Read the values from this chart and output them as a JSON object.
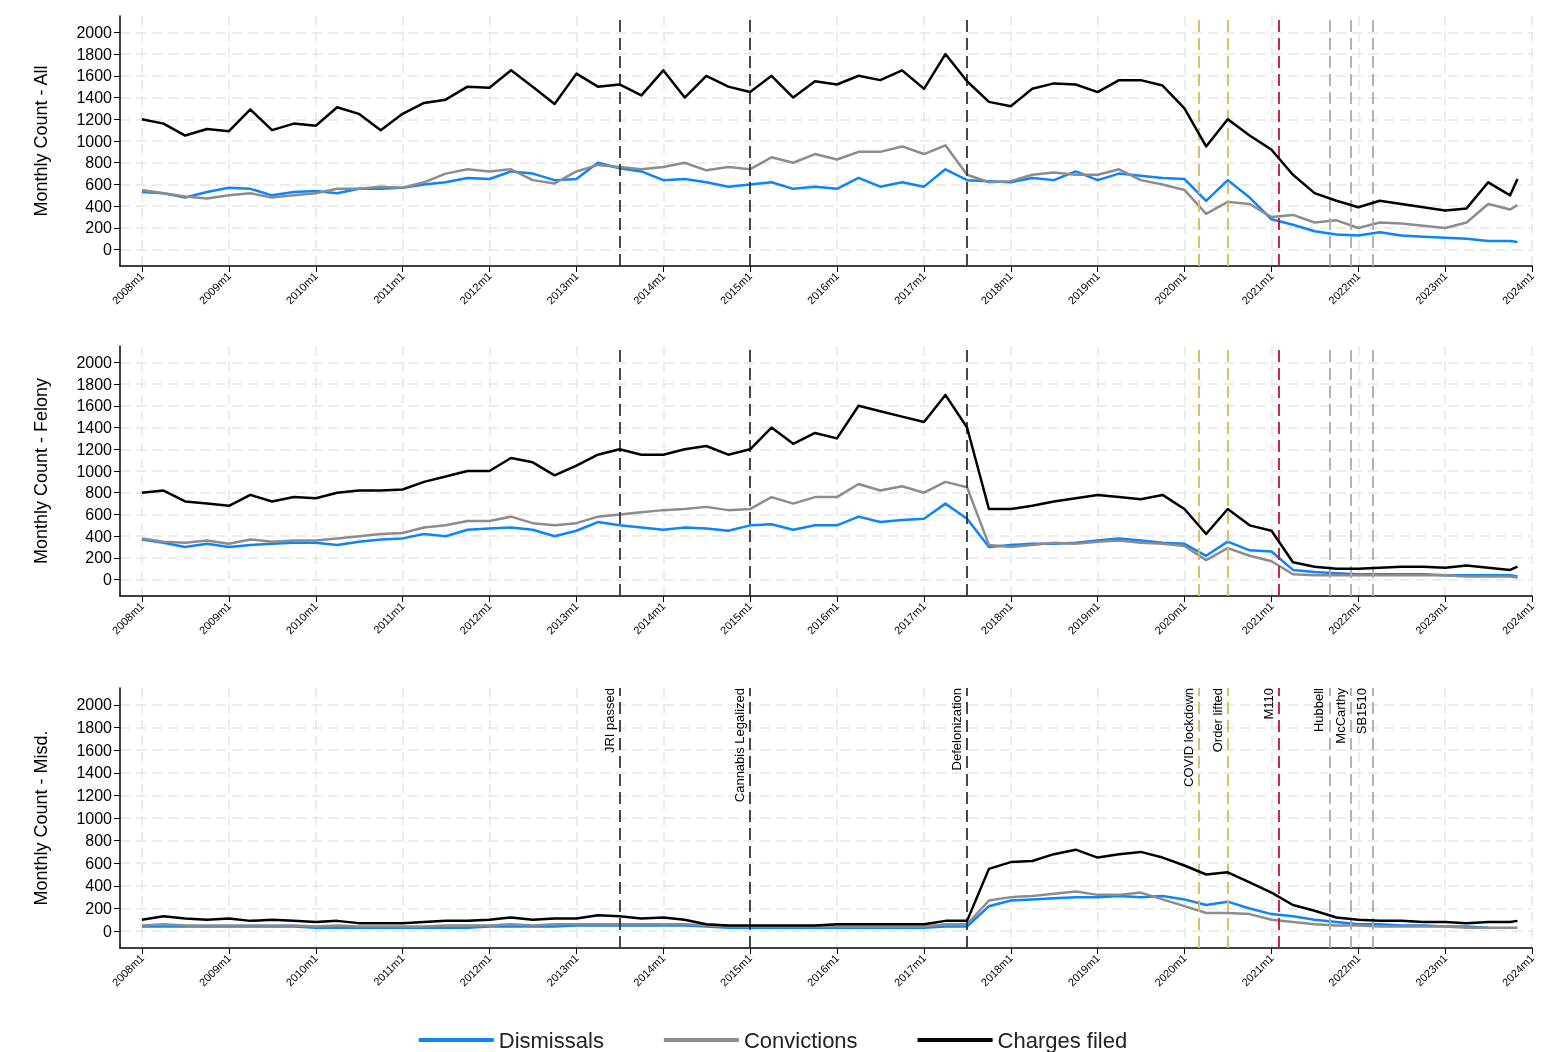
{
  "chart_data": [
    {
      "type": "line",
      "ylabel": "Monthly Count - All",
      "marker": "none",
      "grid": true,
      "x": [
        "2008-01",
        "2008-04",
        "2008-07",
        "2008-10",
        "2009-01",
        "2009-04",
        "2009-07",
        "2009-10",
        "2010-01",
        "2010-04",
        "2010-07",
        "2010-10",
        "2011-01",
        "2011-04",
        "2011-07",
        "2011-10",
        "2012-01",
        "2012-04",
        "2012-07",
        "2012-10",
        "2013-01",
        "2013-04",
        "2013-07",
        "2013-10",
        "2014-01",
        "2014-04",
        "2014-07",
        "2014-10",
        "2015-01",
        "2015-04",
        "2015-07",
        "2015-10",
        "2016-01",
        "2016-04",
        "2016-07",
        "2016-10",
        "2017-01",
        "2017-04",
        "2017-07",
        "2017-10",
        "2018-01",
        "2018-04",
        "2018-07",
        "2018-10",
        "2019-01",
        "2019-04",
        "2019-07",
        "2019-10",
        "2020-01",
        "2020-04",
        "2020-07",
        "2020-10",
        "2021-01",
        "2021-04",
        "2021-07",
        "2021-10",
        "2022-01",
        "2022-04",
        "2022-07",
        "2022-10",
        "2023-01",
        "2023-04",
        "2023-07",
        "2023-10",
        "2023-11"
      ],
      "xlim": [
        "2007-10",
        "2024-01"
      ],
      "xticks": [
        {
          "value": "2008-01",
          "label": "2008m1"
        },
        {
          "value": "2009-01",
          "label": "2009m1"
        },
        {
          "value": "2010-01",
          "label": "2010m1"
        },
        {
          "value": "2011-01",
          "label": "2011m1"
        },
        {
          "value": "2012-01",
          "label": "2012m1"
        },
        {
          "value": "2013-01",
          "label": "2013m1"
        },
        {
          "value": "2014-01",
          "label": "2014m1"
        },
        {
          "value": "2015-01",
          "label": "2015m1"
        },
        {
          "value": "2016-01",
          "label": "2016m1"
        },
        {
          "value": "2017-01",
          "label": "2017m1"
        },
        {
          "value": "2018-01",
          "label": "2018m1"
        },
        {
          "value": "2019-01",
          "label": "2019m1"
        },
        {
          "value": "2020-01",
          "label": "2020m1"
        },
        {
          "value": "2021-01",
          "label": "2021m1"
        },
        {
          "value": "2022-01",
          "label": "2022m1"
        },
        {
          "value": "2023-01",
          "label": "2023m1"
        },
        {
          "value": "2024-01",
          "label": "2024m1"
        }
      ],
      "ylim": [
        -150,
        2150
      ],
      "yticks": [
        0,
        200,
        400,
        600,
        800,
        1000,
        1200,
        1400,
        1600,
        1800,
        2000
      ],
      "series": [
        {
          "color": "#0a84ff",
          "values": [
            530,
            520,
            480,
            530,
            570,
            560,
            500,
            530,
            540,
            520,
            560,
            560,
            570,
            600,
            620,
            660,
            650,
            720,
            700,
            640,
            650,
            800,
            750,
            720,
            640,
            650,
            620,
            580,
            600,
            620,
            560,
            580,
            560,
            660,
            580,
            620,
            580,
            740,
            640,
            630,
            620,
            660,
            640,
            720,
            640,
            700,
            680,
            660,
            650,
            450,
            640,
            480,
            280,
            230,
            170,
            140,
            130,
            160,
            130,
            120,
            110,
            100,
            80,
            80,
            70
          ]
        },
        {
          "color": "#8c8c8c",
          "values": [
            550,
            520,
            490,
            470,
            500,
            520,
            480,
            500,
            520,
            560,
            560,
            580,
            570,
            620,
            700,
            740,
            720,
            740,
            640,
            610,
            720,
            780,
            760,
            740,
            760,
            800,
            730,
            760,
            740,
            850,
            800,
            880,
            830,
            900,
            900,
            950,
            880,
            960,
            690,
            620,
            630,
            690,
            710,
            690,
            690,
            740,
            640,
            600,
            550,
            330,
            440,
            420,
            300,
            320,
            250,
            270,
            200,
            250,
            240,
            220,
            200,
            250,
            420,
            370,
            410
          ]
        },
        {
          "color": "#000000",
          "values": [
            1200,
            1160,
            1050,
            1110,
            1090,
            1290,
            1100,
            1160,
            1140,
            1310,
            1250,
            1100,
            1250,
            1350,
            1380,
            1500,
            1490,
            1650,
            1500,
            1340,
            1620,
            1500,
            1520,
            1420,
            1650,
            1400,
            1600,
            1500,
            1450,
            1600,
            1400,
            1550,
            1520,
            1600,
            1560,
            1650,
            1480,
            1800,
            1550,
            1360,
            1320,
            1480,
            1530,
            1520,
            1450,
            1560,
            1560,
            1510,
            1300,
            950,
            1200,
            1050,
            920,
            690,
            520,
            450,
            390,
            450,
            420,
            390,
            360,
            380,
            620,
            500,
            650
          ]
        }
      ],
      "ref_lines": [
        {
          "axis": "x",
          "value": "2013-07",
          "color": "#333333",
          "line_style": "dashed"
        },
        {
          "axis": "x",
          "value": "2015-01",
          "color": "#333333",
          "line_style": "dashed"
        },
        {
          "axis": "x",
          "value": "2017-07",
          "color": "#333333",
          "line_style": "dashed"
        },
        {
          "axis": "x",
          "value": "2020-03",
          "color": "#d9b85c",
          "line_style": "dashed"
        },
        {
          "axis": "x",
          "value": "2020-07",
          "color": "#d9b85c",
          "line_style": "dashed"
        },
        {
          "axis": "x",
          "value": "2021-02",
          "color": "#c8102e",
          "line_style": "dashed"
        },
        {
          "axis": "x",
          "value": "2021-09",
          "color": "#aaaaaa",
          "line_style": "dashed"
        },
        {
          "axis": "x",
          "value": "2021-12",
          "color": "#aaaaaa",
          "line_style": "dashed"
        },
        {
          "axis": "x",
          "value": "2022-03",
          "color": "#aaaaaa",
          "line_style": "dashed"
        }
      ]
    },
    {
      "type": "line",
      "ylabel": "Monthly Count - Felony",
      "marker": "none",
      "grid": true,
      "x": [
        "2008-01",
        "2008-04",
        "2008-07",
        "2008-10",
        "2009-01",
        "2009-04",
        "2009-07",
        "2009-10",
        "2010-01",
        "2010-04",
        "2010-07",
        "2010-10",
        "2011-01",
        "2011-04",
        "2011-07",
        "2011-10",
        "2012-01",
        "2012-04",
        "2012-07",
        "2012-10",
        "2013-01",
        "2013-04",
        "2013-07",
        "2013-10",
        "2014-01",
        "2014-04",
        "2014-07",
        "2014-10",
        "2015-01",
        "2015-04",
        "2015-07",
        "2015-10",
        "2016-01",
        "2016-04",
        "2016-07",
        "2016-10",
        "2017-01",
        "2017-04",
        "2017-07",
        "2017-10",
        "2018-01",
        "2018-04",
        "2018-07",
        "2018-10",
        "2019-01",
        "2019-04",
        "2019-07",
        "2019-10",
        "2020-01",
        "2020-04",
        "2020-07",
        "2020-10",
        "2021-01",
        "2021-04",
        "2021-07",
        "2021-10",
        "2022-01",
        "2022-04",
        "2022-07",
        "2022-10",
        "2023-01",
        "2023-04",
        "2023-07",
        "2023-10",
        "2023-11"
      ],
      "xlim": [
        "2007-10",
        "2024-01"
      ],
      "xticks": [
        {
          "value": "2008-01",
          "label": "2008m1"
        },
        {
          "value": "2009-01",
          "label": "2009m1"
        },
        {
          "value": "2010-01",
          "label": "2010m1"
        },
        {
          "value": "2011-01",
          "label": "2011m1"
        },
        {
          "value": "2012-01",
          "label": "2012m1"
        },
        {
          "value": "2013-01",
          "label": "2013m1"
        },
        {
          "value": "2014-01",
          "label": "2014m1"
        },
        {
          "value": "2015-01",
          "label": "2015m1"
        },
        {
          "value": "2016-01",
          "label": "2016m1"
        },
        {
          "value": "2017-01",
          "label": "2017m1"
        },
        {
          "value": "2018-01",
          "label": "2018m1"
        },
        {
          "value": "2019-01",
          "label": "2019m1"
        },
        {
          "value": "2020-01",
          "label": "2020m1"
        },
        {
          "value": "2021-01",
          "label": "2021m1"
        },
        {
          "value": "2022-01",
          "label": "2022m1"
        },
        {
          "value": "2023-01",
          "label": "2023m1"
        },
        {
          "value": "2024-01",
          "label": "2024m1"
        }
      ],
      "ylim": [
        -150,
        2150
      ],
      "yticks": [
        0,
        200,
        400,
        600,
        800,
        1000,
        1200,
        1400,
        1600,
        1800,
        2000
      ],
      "series": [
        {
          "color": "#0a84ff",
          "values": [
            370,
            340,
            300,
            330,
            300,
            320,
            330,
            340,
            340,
            320,
            350,
            370,
            380,
            420,
            400,
            460,
            470,
            480,
            460,
            400,
            450,
            530,
            500,
            480,
            460,
            480,
            470,
            450,
            500,
            510,
            460,
            500,
            500,
            580,
            530,
            550,
            560,
            700,
            560,
            300,
            320,
            330,
            330,
            340,
            360,
            380,
            360,
            340,
            330,
            220,
            350,
            270,
            260,
            90,
            70,
            60,
            50,
            50,
            50,
            50,
            40,
            40,
            40,
            40,
            30
          ]
        },
        {
          "color": "#8c8c8c",
          "values": [
            380,
            350,
            340,
            360,
            330,
            370,
            350,
            360,
            360,
            380,
            400,
            420,
            430,
            480,
            500,
            540,
            540,
            580,
            520,
            500,
            520,
            580,
            600,
            620,
            640,
            650,
            670,
            640,
            650,
            760,
            700,
            760,
            760,
            880,
            820,
            860,
            800,
            900,
            850,
            320,
            300,
            320,
            340,
            330,
            350,
            360,
            340,
            330,
            310,
            180,
            290,
            220,
            170,
            50,
            40,
            40,
            40,
            40,
            40,
            40,
            40,
            30,
            30,
            30,
            20
          ]
        },
        {
          "color": "#000000",
          "values": [
            800,
            820,
            720,
            700,
            680,
            780,
            720,
            760,
            750,
            800,
            820,
            820,
            830,
            900,
            950,
            1000,
            1000,
            1120,
            1080,
            960,
            1050,
            1150,
            1200,
            1150,
            1150,
            1200,
            1230,
            1150,
            1200,
            1400,
            1250,
            1350,
            1300,
            1600,
            1550,
            1500,
            1450,
            1700,
            1400,
            650,
            650,
            680,
            720,
            750,
            780,
            760,
            740,
            780,
            650,
            420,
            650,
            500,
            450,
            160,
            120,
            100,
            100,
            110,
            120,
            120,
            110,
            130,
            110,
            90,
            120
          ]
        }
      ],
      "ref_lines": [
        {
          "axis": "x",
          "value": "2013-07",
          "color": "#333333",
          "line_style": "dashed"
        },
        {
          "axis": "x",
          "value": "2015-01",
          "color": "#333333",
          "line_style": "dashed"
        },
        {
          "axis": "x",
          "value": "2017-07",
          "color": "#333333",
          "line_style": "dashed"
        },
        {
          "axis": "x",
          "value": "2020-03",
          "color": "#d9b85c",
          "line_style": "dashed"
        },
        {
          "axis": "x",
          "value": "2020-07",
          "color": "#d9b85c",
          "line_style": "dashed"
        },
        {
          "axis": "x",
          "value": "2021-02",
          "color": "#c8102e",
          "line_style": "dashed"
        },
        {
          "axis": "x",
          "value": "2021-09",
          "color": "#aaaaaa",
          "line_style": "dashed"
        },
        {
          "axis": "x",
          "value": "2021-12",
          "color": "#aaaaaa",
          "line_style": "dashed"
        },
        {
          "axis": "x",
          "value": "2022-03",
          "color": "#aaaaaa",
          "line_style": "dashed"
        }
      ]
    },
    {
      "type": "line",
      "ylabel": "Monthly Count - Misd.",
      "marker": "none",
      "grid": true,
      "legend": "bottom",
      "x": [
        "2008-01",
        "2008-04",
        "2008-07",
        "2008-10",
        "2009-01",
        "2009-04",
        "2009-07",
        "2009-10",
        "2010-01",
        "2010-04",
        "2010-07",
        "2010-10",
        "2011-01",
        "2011-04",
        "2011-07",
        "2011-10",
        "2012-01",
        "2012-04",
        "2012-07",
        "2012-10",
        "2013-01",
        "2013-04",
        "2013-07",
        "2013-10",
        "2014-01",
        "2014-04",
        "2014-07",
        "2014-10",
        "2015-01",
        "2015-04",
        "2015-07",
        "2015-10",
        "2016-01",
        "2016-04",
        "2016-07",
        "2016-10",
        "2017-01",
        "2017-04",
        "2017-07",
        "2017-10",
        "2018-01",
        "2018-04",
        "2018-07",
        "2018-10",
        "2019-01",
        "2019-04",
        "2019-07",
        "2019-10",
        "2020-01",
        "2020-04",
        "2020-07",
        "2020-10",
        "2021-01",
        "2021-04",
        "2021-07",
        "2021-10",
        "2022-01",
        "2022-04",
        "2022-07",
        "2022-10",
        "2023-01",
        "2023-04",
        "2023-07",
        "2023-10",
        "2023-11"
      ],
      "xlim": [
        "2007-10",
        "2024-01"
      ],
      "xticks": [
        {
          "value": "2008-01",
          "label": "2008m1"
        },
        {
          "value": "2009-01",
          "label": "2009m1"
        },
        {
          "value": "2010-01",
          "label": "2010m1"
        },
        {
          "value": "2011-01",
          "label": "2011m1"
        },
        {
          "value": "2012-01",
          "label": "2012m1"
        },
        {
          "value": "2013-01",
          "label": "2013m1"
        },
        {
          "value": "2014-01",
          "label": "2014m1"
        },
        {
          "value": "2015-01",
          "label": "2015m1"
        },
        {
          "value": "2016-01",
          "label": "2016m1"
        },
        {
          "value": "2017-01",
          "label": "2017m1"
        },
        {
          "value": "2018-01",
          "label": "2018m1"
        },
        {
          "value": "2019-01",
          "label": "2019m1"
        },
        {
          "value": "2020-01",
          "label": "2020m1"
        },
        {
          "value": "2021-01",
          "label": "2021m1"
        },
        {
          "value": "2022-01",
          "label": "2022m1"
        },
        {
          "value": "2023-01",
          "label": "2023m1"
        },
        {
          "value": "2024-01",
          "label": "2024m1"
        }
      ],
      "ylim": [
        -150,
        2150
      ],
      "yticks": [
        0,
        200,
        400,
        600,
        800,
        1000,
        1200,
        1400,
        1600,
        1800,
        2000
      ],
      "series": [
        {
          "name": "Dismissals",
          "color": "#0a84ff",
          "values": [
            40,
            40,
            40,
            40,
            40,
            40,
            40,
            40,
            30,
            30,
            30,
            30,
            30,
            30,
            30,
            30,
            40,
            40,
            40,
            40,
            50,
            50,
            50,
            50,
            50,
            50,
            40,
            30,
            30,
            30,
            30,
            30,
            30,
            30,
            30,
            30,
            30,
            40,
            40,
            220,
            270,
            280,
            290,
            300,
            300,
            310,
            300,
            310,
            280,
            230,
            260,
            200,
            150,
            130,
            100,
            80,
            60,
            60,
            50,
            50,
            40,
            40,
            30,
            null,
            null
          ]
        },
        {
          "name": "Convictions",
          "color": "#8c8c8c",
          "values": [
            50,
            60,
            50,
            50,
            50,
            50,
            50,
            50,
            40,
            50,
            40,
            40,
            40,
            40,
            50,
            50,
            50,
            60,
            50,
            60,
            60,
            60,
            60,
            60,
            60,
            60,
            50,
            40,
            40,
            40,
            40,
            40,
            40,
            40,
            40,
            40,
            40,
            60,
            60,
            270,
            300,
            310,
            330,
            350,
            320,
            320,
            340,
            280,
            220,
            160,
            160,
            150,
            100,
            80,
            60,
            50,
            50,
            40,
            40,
            40,
            40,
            30,
            30,
            30,
            30
          ]
        },
        {
          "name": "Charges filed",
          "color": "#000000",
          "values": [
            100,
            130,
            110,
            100,
            110,
            90,
            100,
            90,
            80,
            90,
            70,
            70,
            70,
            80,
            90,
            90,
            100,
            120,
            100,
            110,
            110,
            140,
            130,
            110,
            120,
            100,
            60,
            50,
            50,
            50,
            50,
            50,
            60,
            60,
            60,
            60,
            60,
            90,
            90,
            550,
            610,
            620,
            680,
            720,
            650,
            680,
            700,
            650,
            580,
            500,
            520,
            430,
            340,
            230,
            180,
            120,
            100,
            90,
            90,
            80,
            80,
            70,
            80,
            80,
            90
          ]
        }
      ],
      "ref_lines": [
        {
          "axis": "x",
          "value": "2013-07",
          "label": "JRI passed",
          "color": "#333333",
          "line_style": "dashed"
        },
        {
          "axis": "x",
          "value": "2015-01",
          "label": "Cannabis Legalized",
          "color": "#333333",
          "line_style": "dashed"
        },
        {
          "axis": "x",
          "value": "2017-07",
          "label": "Defelonization",
          "color": "#333333",
          "line_style": "dashed"
        },
        {
          "axis": "x",
          "value": "2020-03",
          "label": "COVID lockdown",
          "color": "#d9b85c",
          "line_style": "dashed"
        },
        {
          "axis": "x",
          "value": "2020-07",
          "label": "Order lifted",
          "color": "#d9b85c",
          "line_style": "dashed"
        },
        {
          "axis": "x",
          "value": "2021-02",
          "label": "M110",
          "color": "#c8102e",
          "line_style": "dashed"
        },
        {
          "axis": "x",
          "value": "2021-09",
          "label": "Hubbell",
          "color": "#aaaaaa",
          "line_style": "dashed"
        },
        {
          "axis": "x",
          "value": "2021-12",
          "label": "McCarthy",
          "color": "#aaaaaa",
          "line_style": "dashed"
        },
        {
          "axis": "x",
          "value": "2022-03",
          "label": "SB1510",
          "color": "#aaaaaa",
          "line_style": "dashed"
        }
      ]
    }
  ]
}
